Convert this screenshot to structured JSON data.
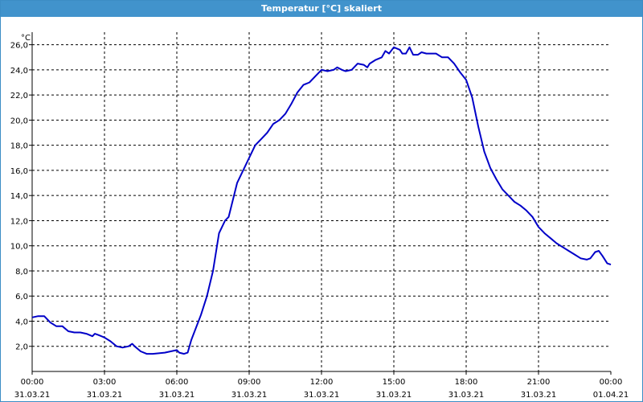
{
  "window": {
    "title": "Temperatur [°C] skaliert"
  },
  "colors": {
    "titlebar": "#4193cc",
    "line": "#0000c8",
    "grid": "#000000",
    "axis": "#000000"
  },
  "chart_data": {
    "type": "line",
    "title": "Temperatur [°C] skaliert",
    "ylabel": "°C",
    "xlabel": "",
    "ylim": [
      0,
      27
    ],
    "xlim": [
      0,
      24
    ],
    "grid": true,
    "legend": "none",
    "yticks": [
      {
        "value": 2,
        "label": "2,0"
      },
      {
        "value": 4,
        "label": "4,0"
      },
      {
        "value": 6,
        "label": "6,0"
      },
      {
        "value": 8,
        "label": "8,0"
      },
      {
        "value": 10,
        "label": "10,0"
      },
      {
        "value": 12,
        "label": "12,0"
      },
      {
        "value": 14,
        "label": "14,0"
      },
      {
        "value": 16,
        "label": "16,0"
      },
      {
        "value": 18,
        "label": "18,0"
      },
      {
        "value": 20,
        "label": "20,0"
      },
      {
        "value": 22,
        "label": "22,0"
      },
      {
        "value": 24,
        "label": "24,0"
      },
      {
        "value": 26,
        "label": "26,0"
      }
    ],
    "xticks": [
      {
        "value": 0,
        "time": "00:00",
        "date": "31.03.21"
      },
      {
        "value": 3,
        "time": "03:00",
        "date": "31.03.21"
      },
      {
        "value": 6,
        "time": "06:00",
        "date": "31.03.21"
      },
      {
        "value": 9,
        "time": "09:00",
        "date": "31.03.21"
      },
      {
        "value": 12,
        "time": "12:00",
        "date": "31.03.21"
      },
      {
        "value": 15,
        "time": "15:00",
        "date": "31.03.21"
      },
      {
        "value": 18,
        "time": "18:00",
        "date": "31.03.21"
      },
      {
        "value": 21,
        "time": "21:00",
        "date": "31.03.21"
      },
      {
        "value": 24,
        "time": "00:00",
        "date": "01.04.21"
      }
    ],
    "series": [
      {
        "points": [
          [
            0.0,
            4.3
          ],
          [
            0.25,
            4.4
          ],
          [
            0.5,
            4.4
          ],
          [
            0.75,
            3.9
          ],
          [
            1.0,
            3.6
          ],
          [
            1.25,
            3.6
          ],
          [
            1.5,
            3.2
          ],
          [
            1.75,
            3.1
          ],
          [
            2.0,
            3.1
          ],
          [
            2.25,
            3.0
          ],
          [
            2.5,
            2.8
          ],
          [
            2.6,
            3.0
          ],
          [
            2.75,
            2.9
          ],
          [
            3.0,
            2.7
          ],
          [
            3.25,
            2.4
          ],
          [
            3.5,
            2.0
          ],
          [
            3.75,
            1.9
          ],
          [
            4.0,
            2.0
          ],
          [
            4.15,
            2.2
          ],
          [
            4.25,
            2.0
          ],
          [
            4.5,
            1.6
          ],
          [
            4.75,
            1.4
          ],
          [
            5.0,
            1.4
          ],
          [
            5.5,
            1.5
          ],
          [
            5.75,
            1.6
          ],
          [
            6.0,
            1.7
          ],
          [
            6.1,
            1.5
          ],
          [
            6.3,
            1.4
          ],
          [
            6.45,
            1.5
          ],
          [
            6.6,
            2.5
          ],
          [
            7.0,
            4.5
          ],
          [
            7.25,
            6.0
          ],
          [
            7.5,
            8.0
          ],
          [
            7.75,
            11.0
          ],
          [
            8.0,
            12.0
          ],
          [
            8.15,
            12.3
          ],
          [
            8.5,
            15.0
          ],
          [
            8.75,
            16.0
          ],
          [
            9.0,
            17.0
          ],
          [
            9.25,
            18.0
          ],
          [
            9.5,
            18.5
          ],
          [
            9.75,
            19.0
          ],
          [
            10.0,
            19.7
          ],
          [
            10.25,
            20.0
          ],
          [
            10.5,
            20.5
          ],
          [
            10.75,
            21.3
          ],
          [
            11.0,
            22.2
          ],
          [
            11.25,
            22.8
          ],
          [
            11.5,
            23.0
          ],
          [
            11.75,
            23.5
          ],
          [
            12.0,
            24.0
          ],
          [
            12.25,
            23.9
          ],
          [
            12.5,
            24.0
          ],
          [
            12.65,
            24.2
          ],
          [
            12.85,
            24.0
          ],
          [
            13.0,
            23.9
          ],
          [
            13.25,
            24.0
          ],
          [
            13.5,
            24.5
          ],
          [
            13.75,
            24.4
          ],
          [
            13.9,
            24.2
          ],
          [
            14.0,
            24.5
          ],
          [
            14.25,
            24.8
          ],
          [
            14.5,
            25.0
          ],
          [
            14.65,
            25.5
          ],
          [
            14.8,
            25.3
          ],
          [
            15.0,
            25.8
          ],
          [
            15.25,
            25.6
          ],
          [
            15.35,
            25.3
          ],
          [
            15.5,
            25.3
          ],
          [
            15.65,
            25.8
          ],
          [
            15.8,
            25.2
          ],
          [
            16.0,
            25.2
          ],
          [
            16.15,
            25.4
          ],
          [
            16.35,
            25.3
          ],
          [
            16.75,
            25.3
          ],
          [
            17.0,
            25.0
          ],
          [
            17.25,
            25.0
          ],
          [
            17.5,
            24.5
          ],
          [
            17.75,
            23.8
          ],
          [
            18.0,
            23.2
          ],
          [
            18.25,
            21.8
          ],
          [
            18.5,
            19.5
          ],
          [
            18.75,
            17.5
          ],
          [
            19.0,
            16.2
          ],
          [
            19.25,
            15.3
          ],
          [
            19.5,
            14.5
          ],
          [
            19.75,
            14.0
          ],
          [
            20.0,
            13.5
          ],
          [
            20.25,
            13.2
          ],
          [
            20.5,
            12.8
          ],
          [
            20.75,
            12.3
          ],
          [
            21.0,
            11.5
          ],
          [
            21.25,
            11.0
          ],
          [
            21.5,
            10.6
          ],
          [
            21.75,
            10.2
          ],
          [
            22.0,
            9.9
          ],
          [
            22.25,
            9.6
          ],
          [
            22.5,
            9.3
          ],
          [
            22.75,
            9.0
          ],
          [
            23.0,
            8.9
          ],
          [
            23.15,
            9.0
          ],
          [
            23.35,
            9.5
          ],
          [
            23.5,
            9.6
          ],
          [
            23.65,
            9.2
          ],
          [
            23.85,
            8.6
          ],
          [
            24.0,
            8.5
          ]
        ]
      }
    ]
  }
}
